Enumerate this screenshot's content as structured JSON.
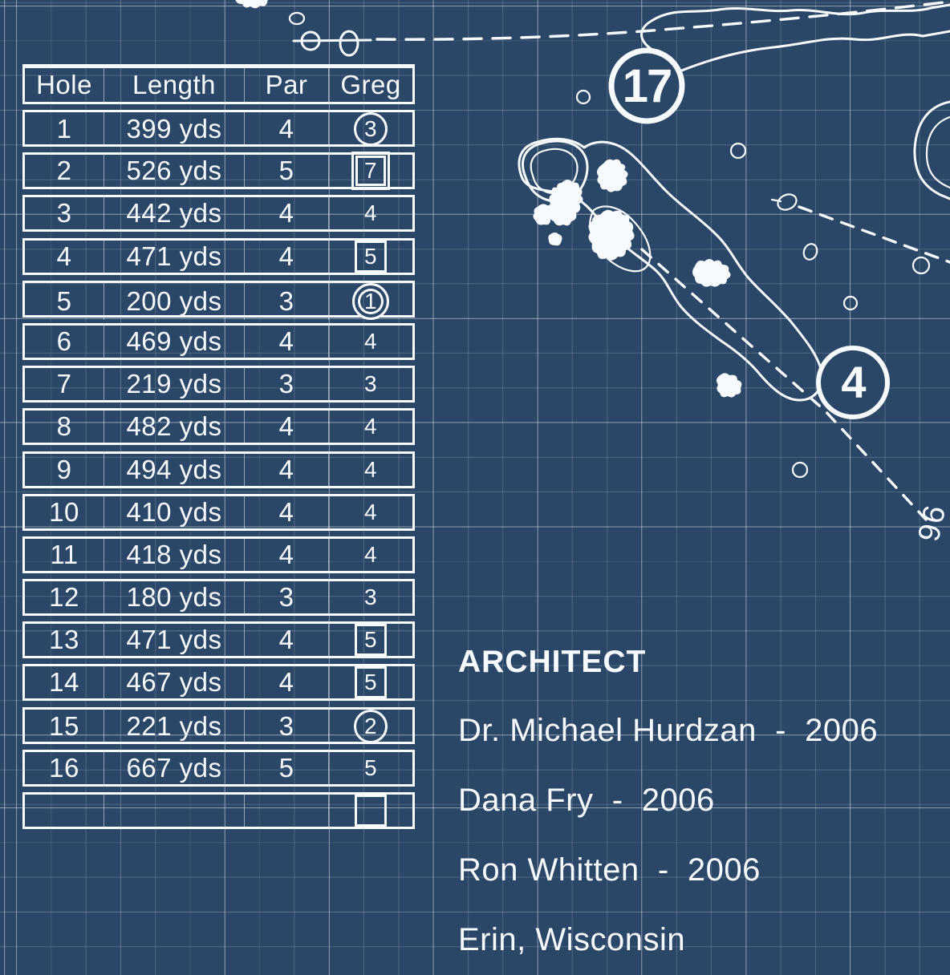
{
  "scorecard": {
    "headers": [
      "Hole",
      "Length",
      "Par",
      "Greg"
    ],
    "rows": [
      {
        "hole": "1",
        "length": "399 yds",
        "par": "4",
        "score": "3",
        "marker": "circle"
      },
      {
        "hole": "2",
        "length": "526 yds",
        "par": "5",
        "score": "7",
        "marker": "double-square"
      },
      {
        "hole": "3",
        "length": "442 yds",
        "par": "4",
        "score": "4",
        "marker": "none"
      },
      {
        "hole": "4",
        "length": "471 yds",
        "par": "4",
        "score": "5",
        "marker": "square"
      },
      {
        "hole": "5",
        "length": "200 yds",
        "par": "3",
        "score": "1",
        "marker": "double-circle"
      },
      {
        "hole": "6",
        "length": "469 yds",
        "par": "4",
        "score": "4",
        "marker": "none"
      },
      {
        "hole": "7",
        "length": "219 yds",
        "par": "3",
        "score": "3",
        "marker": "none"
      },
      {
        "hole": "8",
        "length": "482 yds",
        "par": "4",
        "score": "4",
        "marker": "none"
      },
      {
        "hole": "9",
        "length": "494 yds",
        "par": "4",
        "score": "4",
        "marker": "none"
      },
      {
        "hole": "10",
        "length": "410 yds",
        "par": "4",
        "score": "4",
        "marker": "none"
      },
      {
        "hole": "11",
        "length": "418 yds",
        "par": "4",
        "score": "4",
        "marker": "none"
      },
      {
        "hole": "12",
        "length": "180 yds",
        "par": "3",
        "score": "3",
        "marker": "none"
      },
      {
        "hole": "13",
        "length": "471 yds",
        "par": "4",
        "score": "5",
        "marker": "square"
      },
      {
        "hole": "14",
        "length": "467 yds",
        "par": "4",
        "score": "5",
        "marker": "square"
      },
      {
        "hole": "15",
        "length": "221 yds",
        "par": "3",
        "score": "2",
        "marker": "circle"
      },
      {
        "hole": "16",
        "length": "667 yds",
        "par": "5",
        "score": "5",
        "marker": "none"
      },
      {
        "hole": "",
        "length": "",
        "par": "",
        "score": "",
        "marker": "square"
      }
    ]
  },
  "architect": {
    "heading": "ARCHITECT",
    "lines": [
      "Dr. Michael Hurdzan  -  2006",
      "Dana Fry  -  2006",
      "Ron Whitten  -  2006",
      "Erin, Wisconsin"
    ]
  },
  "map": {
    "hole_markers": [
      {
        "number": "17"
      },
      {
        "number": "4"
      }
    ],
    "edge_label": "96"
  },
  "colors": {
    "background": "#2b4768",
    "line": "#f7fafc",
    "grid_minor": "rgba(255,255,255,0.16)",
    "grid_major": "rgba(255,255,255,0.33)"
  }
}
